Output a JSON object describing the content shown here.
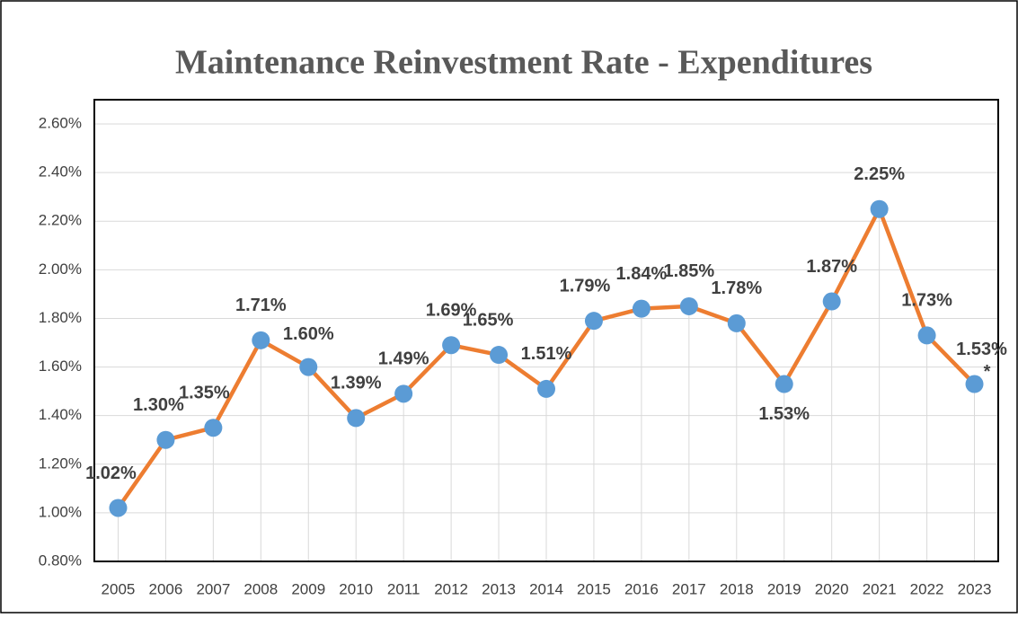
{
  "chart_data": {
    "type": "line",
    "title": "Maintenance Reinvestment Rate - Expenditures",
    "categories": [
      "2005",
      "2006",
      "2007",
      "2008",
      "2009",
      "2010",
      "2011",
      "2012",
      "2013",
      "2014",
      "2015",
      "2016",
      "2017",
      "2018",
      "2019",
      "2020",
      "2021",
      "2022",
      "2023"
    ],
    "series": [
      {
        "name": "Maintenance Reinvestment Rate",
        "color": "#ED7D31",
        "marker_color": "#5B9BD5",
        "values": [
          1.02,
          1.3,
          1.35,
          1.71,
          1.6,
          1.39,
          1.49,
          1.69,
          1.65,
          1.51,
          1.79,
          1.84,
          1.85,
          1.78,
          1.53,
          1.87,
          2.25,
          1.73,
          1.53
        ],
        "value_labels": [
          "1.02%",
          "1.30%",
          "1.35%",
          "1.71%",
          "1.60%",
          "1.39%",
          "1.49%",
          "1.69%",
          "1.65%",
          "1.51%",
          "1.79%",
          "1.84%",
          "1.85%",
          "1.78%",
          "1.53%",
          "1.87%",
          "2.25%",
          "1.73%",
          "1.53%"
        ]
      }
    ],
    "annotation": "*",
    "ylim": [
      0.8,
      2.7
    ],
    "yticks": [
      {
        "value": 0.8,
        "label": "0.80%"
      },
      {
        "value": 1.0,
        "label": "1.00%"
      },
      {
        "value": 1.2,
        "label": "1.20%"
      },
      {
        "value": 1.4,
        "label": "1.40%"
      },
      {
        "value": 1.6,
        "label": "1.60%"
      },
      {
        "value": 1.8,
        "label": "1.80%"
      },
      {
        "value": 2.0,
        "label": "2.00%"
      },
      {
        "value": 2.2,
        "label": "2.20%"
      },
      {
        "value": 2.4,
        "label": "2.40%"
      },
      {
        "value": 2.6,
        "label": "2.60%"
      }
    ],
    "grid": true
  }
}
